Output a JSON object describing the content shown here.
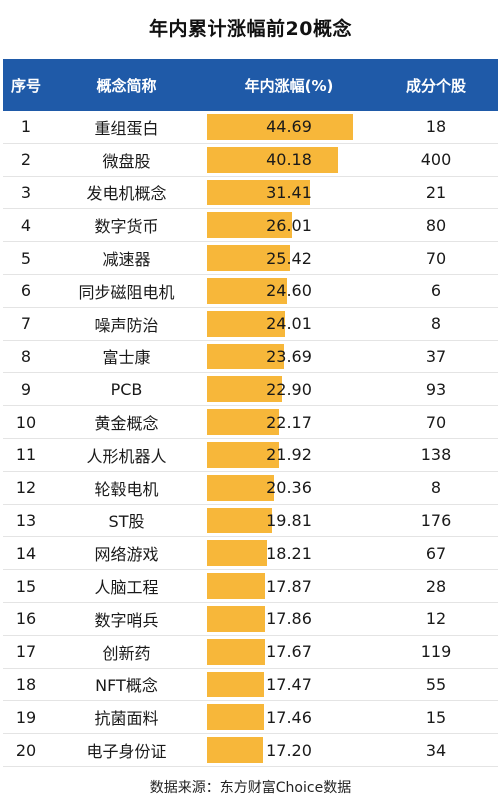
{
  "title": "年内累计涨幅前20概念",
  "headers": [
    "序号",
    "概念简称",
    "年内涨幅(%)",
    "成分个股"
  ],
  "source": "数据来源：东方财富Choice数据",
  "colors": {
    "header_bg": "#1f5aa8",
    "bar": "#f7b73a"
  },
  "chart_data": {
    "type": "table",
    "title": "年内累计涨幅前20概念",
    "columns": [
      "序号",
      "概念简称",
      "年内涨幅(%)",
      "成分个股"
    ],
    "rows": [
      {
        "rank": "1",
        "name": "重组蛋白",
        "gain": 44.69,
        "gain_text": "44.69",
        "stocks": "18"
      },
      {
        "rank": "2",
        "name": "微盘股",
        "gain": 40.18,
        "gain_text": "40.18",
        "stocks": "400"
      },
      {
        "rank": "3",
        "name": "发电机概念",
        "gain": 31.41,
        "gain_text": "31.41",
        "stocks": "21"
      },
      {
        "rank": "4",
        "name": "数字货币",
        "gain": 26.01,
        "gain_text": "26.01",
        "stocks": "80"
      },
      {
        "rank": "5",
        "name": "减速器",
        "gain": 25.42,
        "gain_text": "25.42",
        "stocks": "70"
      },
      {
        "rank": "6",
        "name": "同步磁阻电机",
        "gain": 24.6,
        "gain_text": "24.60",
        "stocks": "6"
      },
      {
        "rank": "7",
        "name": "噪声防治",
        "gain": 24.01,
        "gain_text": "24.01",
        "stocks": "8"
      },
      {
        "rank": "8",
        "name": "富士康",
        "gain": 23.69,
        "gain_text": "23.69",
        "stocks": "37"
      },
      {
        "rank": "9",
        "name": "PCB",
        "gain": 22.9,
        "gain_text": "22.90",
        "stocks": "93"
      },
      {
        "rank": "10",
        "name": "黄金概念",
        "gain": 22.17,
        "gain_text": "22.17",
        "stocks": "70"
      },
      {
        "rank": "11",
        "name": "人形机器人",
        "gain": 21.92,
        "gain_text": "21.92",
        "stocks": "138"
      },
      {
        "rank": "12",
        "name": "轮毂电机",
        "gain": 20.36,
        "gain_text": "20.36",
        "stocks": "8"
      },
      {
        "rank": "13",
        "name": "ST股",
        "gain": 19.81,
        "gain_text": "19.81",
        "stocks": "176"
      },
      {
        "rank": "14",
        "name": "网络游戏",
        "gain": 18.21,
        "gain_text": "18.21",
        "stocks": "67"
      },
      {
        "rank": "15",
        "name": "人脑工程",
        "gain": 17.87,
        "gain_text": "17.87",
        "stocks": "28"
      },
      {
        "rank": "16",
        "name": "数字哨兵",
        "gain": 17.86,
        "gain_text": "17.86",
        "stocks": "12"
      },
      {
        "rank": "17",
        "name": "创新药",
        "gain": 17.67,
        "gain_text": "17.67",
        "stocks": "119"
      },
      {
        "rank": "18",
        "name": "NFT概念",
        "gain": 17.47,
        "gain_text": "17.47",
        "stocks": "55"
      },
      {
        "rank": "19",
        "name": "抗菌面料",
        "gain": 17.46,
        "gain_text": "17.46",
        "stocks": "15"
      },
      {
        "rank": "20",
        "name": "电子身份证",
        "gain": 17.2,
        "gain_text": "17.20",
        "stocks": "34"
      }
    ]
  }
}
